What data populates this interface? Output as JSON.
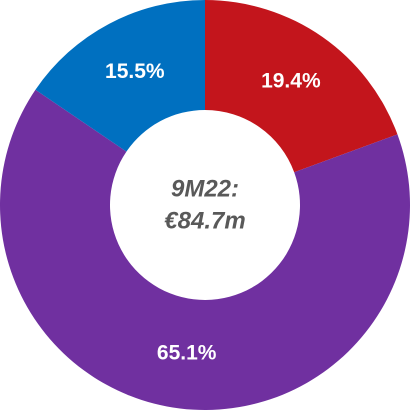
{
  "chart_data": {
    "type": "donut",
    "center_lines": [
      "9M22:",
      "€84.7m"
    ],
    "values": [
      19.4,
      65.1,
      15.5
    ],
    "value_labels": [
      "19.4%",
      "65.1%",
      "15.5%"
    ],
    "colors": [
      "#c3151c",
      "#7030a0",
      "#0070c0"
    ]
  }
}
